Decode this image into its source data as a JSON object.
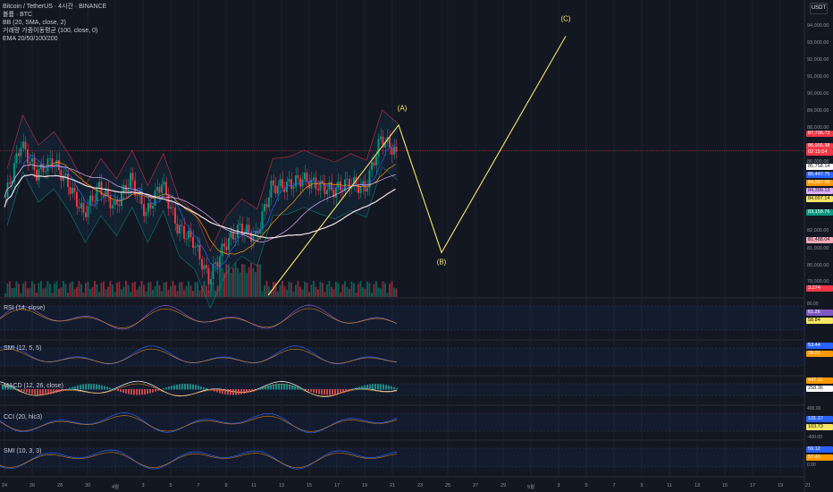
{
  "currency_button": "USDT",
  "legend": [
    "Bitcoin / TetherUS · 4시간 · BINANCE",
    "볼륨 · BTC",
    "BB (20, SMA, close, 2)",
    "거래량 가중이동평균 (100, close, 0)",
    "EMA 20/50/100/200"
  ],
  "price_axis": [
    "94,000.00",
    "93,000.00",
    "92,000.00",
    "91,000.00",
    "90,000.00",
    "89,000.00",
    "88,000.00",
    "86,000.00",
    "83,000.00",
    "82,000.00",
    "81,000.00",
    "80,000.00",
    "79,000.00"
  ],
  "price_tags": [
    {
      "text": "87,736.73",
      "color": "#f23645"
    },
    {
      "text": "86,955.38",
      "color": "#f23645"
    },
    {
      "text": "02:15:54",
      "color": "#f23645"
    },
    {
      "text": "85,758.14",
      "color": "#ffffff",
      "fg": "#131722"
    },
    {
      "text": "85,447.75",
      "color": "#2962ff"
    },
    {
      "text": "84,807.99",
      "color": "#ff9800"
    },
    {
      "text": "84,399.13",
      "color": "#e0b0ff",
      "fg": "#131722"
    },
    {
      "text": "84,097.14",
      "color": "#f5e663",
      "fg": "#131722"
    },
    {
      "text": "83,158.76",
      "color": "#089981"
    },
    {
      "text": "81,488.04",
      "color": "#f7a9b7",
      "fg": "#131722"
    },
    {
      "text": "3.274",
      "color": "#f23645"
    }
  ],
  "wave_labels": [
    "(A)",
    "(B)",
    "(C)"
  ],
  "panes": [
    {
      "label": "RSI (14, close)",
      "axis": [
        "80.00",
        "61.26",
        "58.84"
      ]
    },
    {
      "label": "SMI (12, 5, 5)",
      "axis": [
        "53.44",
        "39.01"
      ]
    },
    {
      "label": "MACD (12, 26, close)",
      "axis": [
        "447.11",
        "258.36"
      ]
    },
    {
      "label": "CCI (20, hlc3)",
      "axis": [
        "400.00",
        "131.17",
        "103.73",
        "-400.00"
      ]
    },
    {
      "label": "SMI (10, 3, 3)",
      "axis": [
        "59.12",
        "57.41",
        "0.00"
      ]
    }
  ],
  "dates": [
    "24",
    "26",
    "28",
    "30",
    "4월",
    "3",
    "5",
    "7",
    "9",
    "11",
    "13",
    "15",
    "17",
    "19",
    "21",
    "23",
    "25",
    "27",
    "29",
    "5월",
    "3",
    "5",
    "7",
    "9",
    "11",
    "13",
    "15",
    "17",
    "19",
    "21"
  ],
  "chart_data": {
    "type": "line",
    "series": [
      {
        "values": [
          84200,
          87400,
          85600,
          86400,
          85000,
          83200,
          84800,
          83600,
          85300,
          83200,
          85100,
          82400,
          81600,
          79300,
          81300,
          82400,
          81800,
          84800,
          84900,
          85300,
          84900,
          84600,
          85100,
          84700,
          87700,
          86900
        ]
      }
    ],
    "projection_points": [
      {
        "label": "(A)",
        "y": 88500
      },
      {
        "label": "(B)",
        "y": 80900
      },
      {
        "label": "(C)",
        "y": 93800
      }
    ],
    "ylim": [
      79000,
      94300
    ]
  },
  "colors": {
    "bg": "#131722",
    "up": "#089981",
    "down": "#f23645",
    "projection": "#f5e663"
  }
}
